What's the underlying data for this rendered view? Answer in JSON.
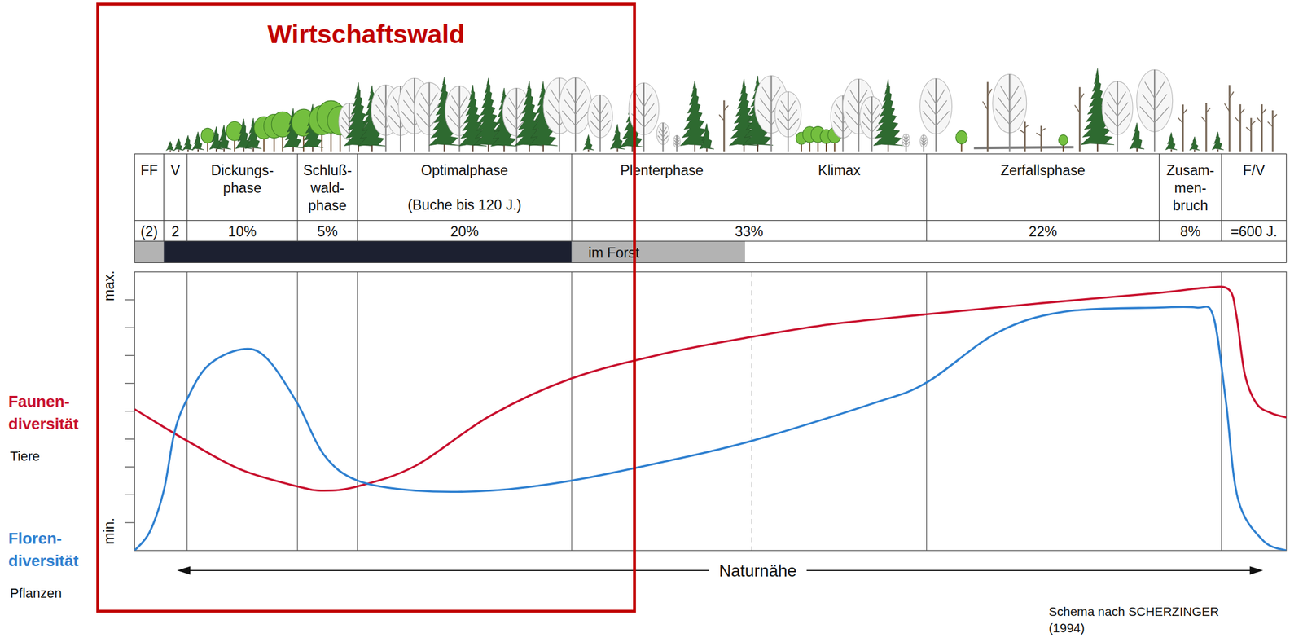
{
  "chart_data": {
    "type": "line",
    "x_label": "Naturnähe",
    "xlim": [
      0,
      100
    ],
    "ylim": [
      0,
      10
    ],
    "yticks": [
      1,
      2,
      3,
      4,
      5,
      6,
      7,
      8,
      9
    ],
    "tick_labels": false,
    "grid": false,
    "legend": "left",
    "series": [
      {
        "name": "Faunen-\ndiversität",
        "description": "Tiere",
        "color": "#c8102e",
        "x": [
          0,
          4.55,
          9.24,
          14.14,
          16.45,
          19.34,
          24.39,
          30.88,
          37.95,
          46.0,
          53.6,
          60.46,
          68.76,
          78.5,
          88.96,
          92.9,
          95.0,
          95.67,
          96.39,
          97.4,
          98.7,
          100
        ],
        "values": [
          5.07,
          3.94,
          2.9,
          2.3,
          2.15,
          2.3,
          3.04,
          4.84,
          6.18,
          7.07,
          7.67,
          8.12,
          8.48,
          8.87,
          9.25,
          9.43,
          9.37,
          8.42,
          6.33,
          5.28,
          4.93,
          4.78
        ]
      },
      {
        "name": "Floren-\ndiversität",
        "description": "Pflanzen",
        "color": "#2f80d0",
        "x": [
          0,
          1.3,
          2.53,
          3.46,
          4.55,
          6.35,
          9.24,
          11.4,
          14.14,
          16.45,
          19.34,
          24.39,
          30.88,
          37.95,
          46.0,
          53.6,
          64.1,
          68.76,
          74.9,
          80.66,
          88.96,
          92.2,
          93.65,
          94.73,
          95.8,
          97.98,
          100
        ],
        "values": [
          0,
          0.66,
          2.15,
          4.24,
          5.43,
          6.63,
          7.22,
          6.93,
          5.28,
          3.43,
          2.51,
          2.15,
          2.15,
          2.51,
          3.19,
          3.94,
          5.28,
          6.03,
          7.82,
          8.57,
          8.72,
          8.72,
          8.42,
          5.43,
          1.85,
          0.36,
          0
        ]
      }
    ],
    "annotations": [
      {
        "text": "max.",
        "y": 9.5
      },
      {
        "text": "min.",
        "y": 0.7
      }
    ],
    "phases": [
      {
        "label": "FF",
        "start": 0,
        "end": 2.53
      },
      {
        "label": "V",
        "start": 2.53,
        "end": 4.55
      },
      {
        "label": "Dickungs-\nphase",
        "start": 4.55,
        "end": 14.14
      },
      {
        "label": "Schluß-\nwald-\nphase",
        "start": 14.14,
        "end": 19.34
      },
      {
        "label": "Optimalphase",
        "note": "(Buche bis 120 J.)",
        "start": 19.34,
        "end": 37.95
      },
      {
        "label": "Plenterphase",
        "start": 37.95,
        "end": 53.6
      },
      {
        "label": "Klimax",
        "start": 53.6,
        "end": 68.76
      },
      {
        "label": "Zerfallsphase",
        "start": 68.76,
        "end": 88.96
      },
      {
        "label": "Zusam-\nmen-\nbruch",
        "start": 88.96,
        "end": 94.37
      },
      {
        "label": "F/V",
        "start": 94.37,
        "end": 100
      }
    ],
    "shares": [
      {
        "label": "(2)",
        "start": 0,
        "end": 2.53
      },
      {
        "label": "2",
        "start": 2.53,
        "end": 4.55
      },
      {
        "label": "10%",
        "start": 4.55,
        "end": 14.14
      },
      {
        "label": "5%",
        "start": 14.14,
        "end": 19.34
      },
      {
        "label": "20%",
        "start": 19.34,
        "end": 37.95
      },
      {
        "label": "33%",
        "start": 37.95,
        "end": 68.76
      },
      {
        "label": "22%",
        "start": 68.76,
        "end": 88.96
      },
      {
        "label": "8%",
        "start": 88.96,
        "end": 94.37
      },
      {
        "label": "=600 J.",
        "start": 94.37,
        "end": 100
      }
    ],
    "management": [
      {
        "start": 0,
        "end": 2.53,
        "color": "#b3b3b3"
      },
      {
        "start": 2.53,
        "end": 37.95,
        "color": "#1c2030"
      },
      {
        "start": 37.95,
        "end": 53,
        "color": "#b3b3b3",
        "text": "im Forst"
      }
    ],
    "dividers": [
      {
        "x": 4.55,
        "line_style": "solid"
      },
      {
        "x": 14.14,
        "line_style": "solid"
      },
      {
        "x": 19.34,
        "line_style": "solid"
      },
      {
        "x": 37.95,
        "line_style": "solid"
      },
      {
        "x": 53.6,
        "line_style": "dashed"
      },
      {
        "x": 68.76,
        "line_style": "solid"
      },
      {
        "x": 94.37,
        "line_style": "solid"
      }
    ],
    "highlight": {
      "text": "Wirtschaftswald",
      "start": -3.2,
      "end": 43.4,
      "color": "#c00000"
    },
    "source": "Schema nach SCHERZINGER\n(1994)"
  }
}
